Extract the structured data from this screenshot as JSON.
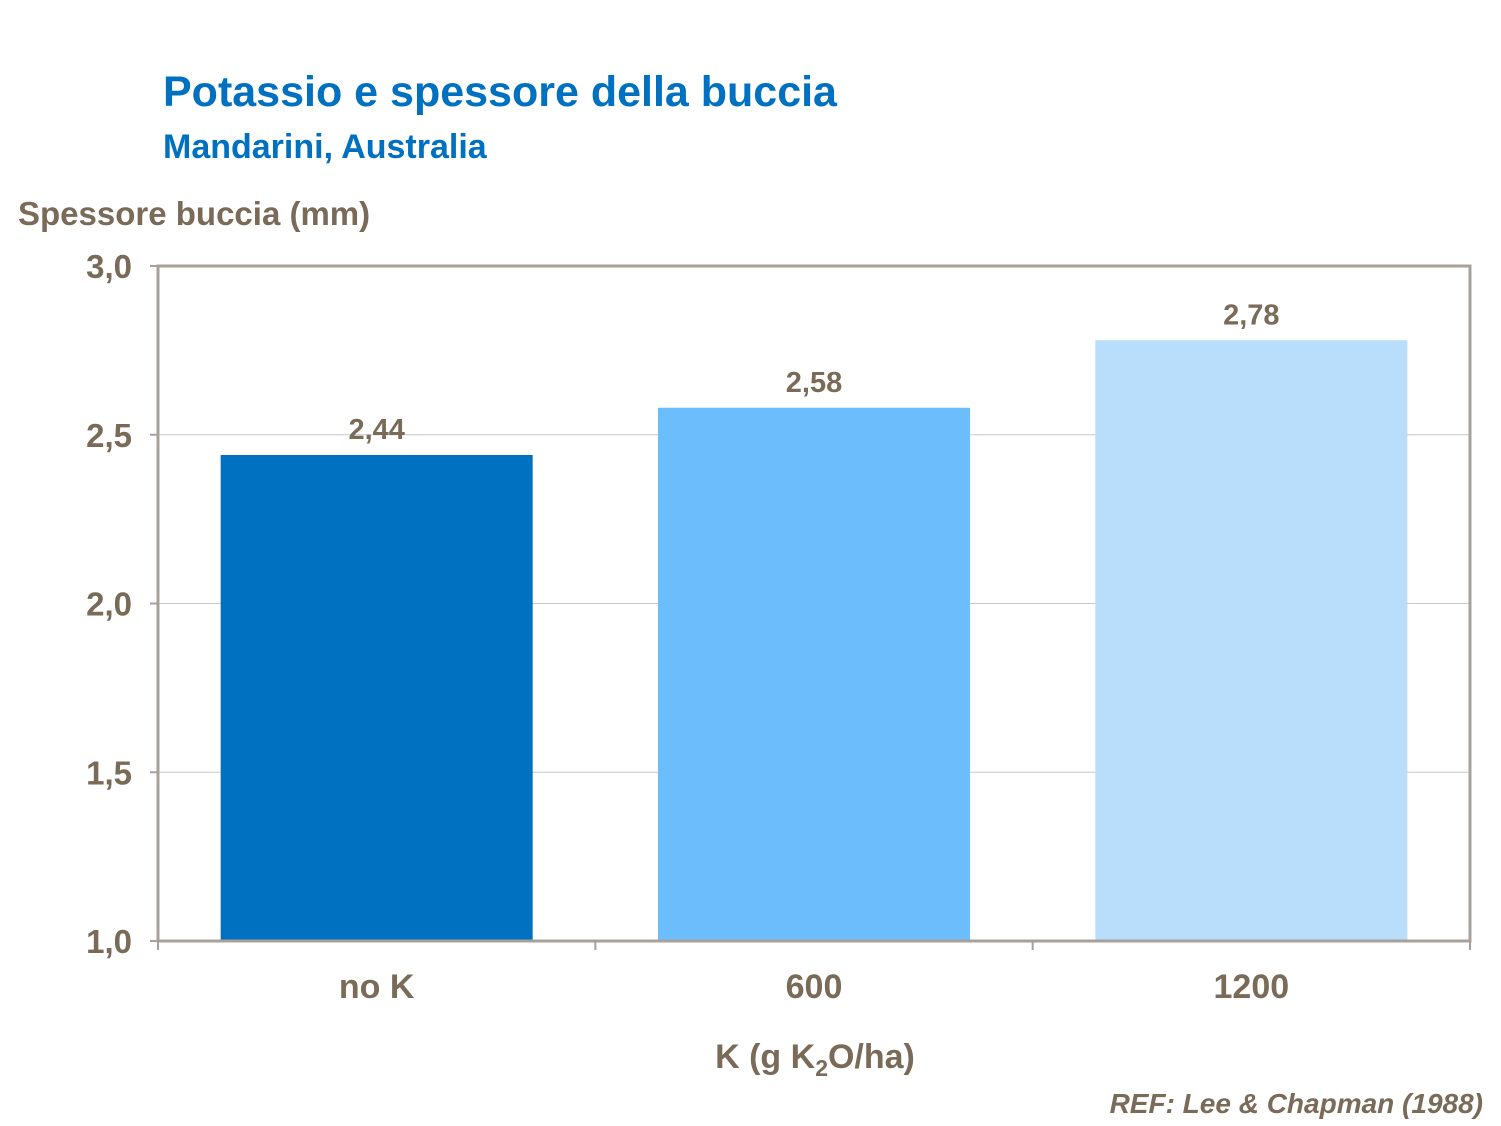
{
  "chart_data": {
    "type": "bar",
    "title": "Potassio e spessore della buccia",
    "subtitle": "Mandarini, Australia",
    "ylabel": "Spessore buccia (mm)",
    "xlabel": {
      "main": "K (g K",
      "sub": "2",
      "rest": "O/ha)"
    },
    "categories": [
      "no K",
      "600",
      "1200"
    ],
    "values": [
      2.44,
      2.58,
      2.78
    ],
    "value_labels": [
      "2,44",
      "2,58",
      "2,78"
    ],
    "bar_colors": [
      "#0070c0",
      "#6bbdfc",
      "#b8defc"
    ],
    "ylim": [
      1.0,
      3.0
    ],
    "yticks": [
      {
        "value": 1.0,
        "label": "1,0"
      },
      {
        "value": 1.5,
        "label": "1,5"
      },
      {
        "value": 2.0,
        "label": "2,0"
      },
      {
        "value": 2.5,
        "label": "2,5"
      },
      {
        "value": 3.0,
        "label": "3,0"
      }
    ],
    "grid": true,
    "reference": "REF: Lee & Chapman (1988)"
  },
  "colors": {
    "title": "#0070c0",
    "text": "#7a6a58",
    "frame": "#a9a09a",
    "grid": "#c8c8c8"
  }
}
